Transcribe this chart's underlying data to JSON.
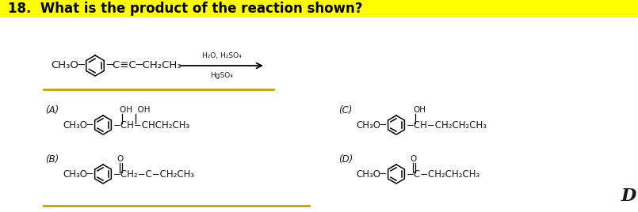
{
  "title": "18.  What is the product of the reaction shown?",
  "title_bg": "#FFFF00",
  "bg_color": "#FFFFFF",
  "text_color": "#1a1a1a",
  "line_color": "#C8A000",
  "font_size": 9,
  "title_font_size": 12,
  "reaction": {
    "left_text": "CH₃O−",
    "right_text": "−C≡C−CH₂CH₃",
    "arrow_above": "H₂O, H₂SO₄",
    "arrow_below": "HgSO₄"
  },
  "choices": [
    {
      "label": "(A)",
      "col": 0,
      "row": 0,
      "top_text": "OH  OH",
      "right_text": "−CH−CHCH₂CH₃",
      "carbonyl": false,
      "top_has_tick_a": true,
      "top_has_tick_b": true
    },
    {
      "label": "(B)",
      "col": 0,
      "row": 1,
      "top_text": "O",
      "right_text": "−CH₂−C−CH₂CH₃",
      "carbonyl": true
    },
    {
      "label": "(C)",
      "col": 1,
      "row": 0,
      "top_text": "OH",
      "right_text": "−CH−CH₂CH₂CH₃",
      "carbonyl": false,
      "top_has_tick_a": true
    },
    {
      "label": "(D)",
      "col": 1,
      "row": 1,
      "top_text": "O",
      "right_text": "−C−CH₂CH₂CH₃",
      "carbonyl": true
    }
  ],
  "answer": "D"
}
